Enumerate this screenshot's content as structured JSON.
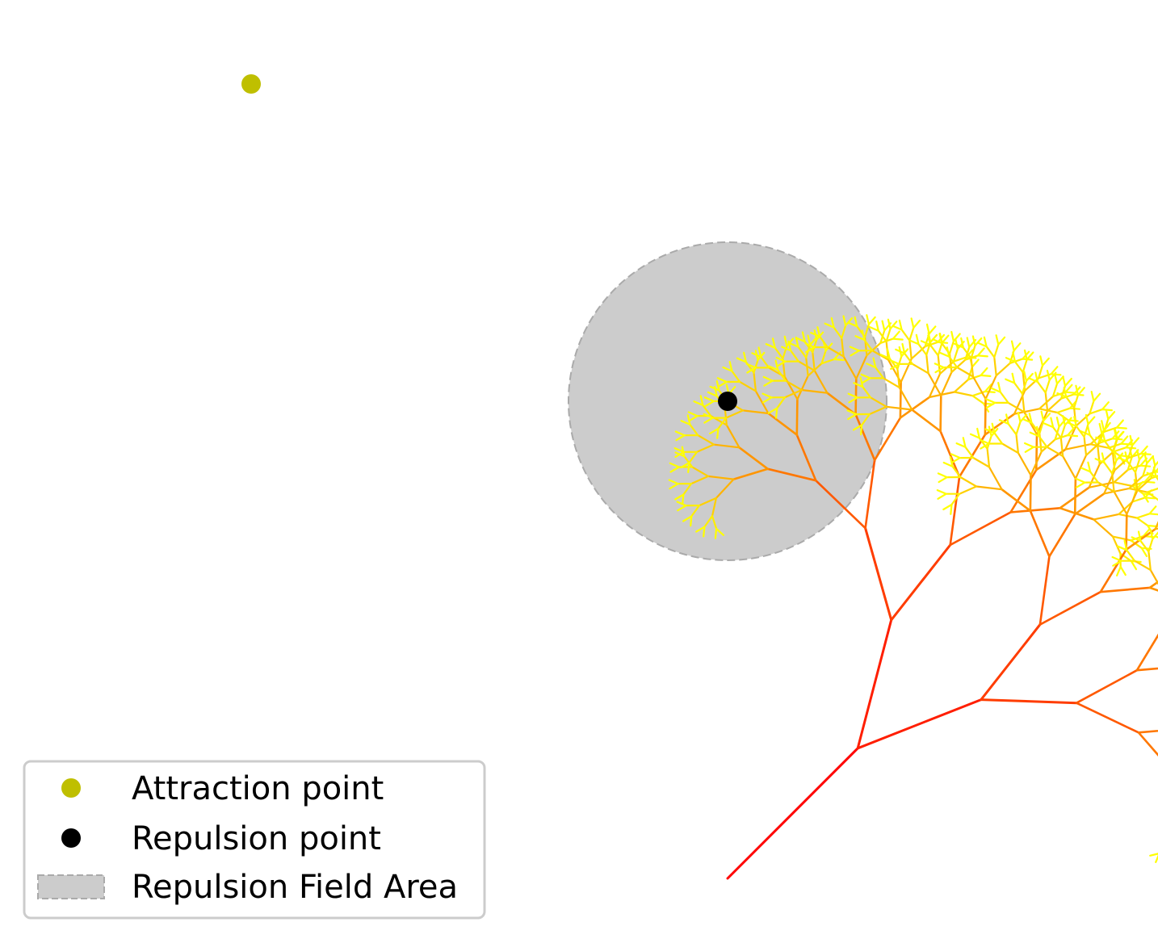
{
  "figure": {
    "colors": {
      "background": "#ffffff",
      "trunk": "#ff0000",
      "tips": "#ffff00",
      "attraction_point": "#bfbf00",
      "repulsion_point": "#000000",
      "repulsion_field_fill": "#cccccc",
      "repulsion_field_edge": "#aaaaaa"
    },
    "tree": {
      "depth": 9,
      "trunk_angle_deg": 45
    },
    "attraction_point": {
      "x": -3.0,
      "y": 5.0
    },
    "repulsion_point": {
      "x": 0.0,
      "y": 3.0
    },
    "repulsion_field_radius": 1.0
  },
  "legend": {
    "placement": "lower-left",
    "items": [
      {
        "label": "Attraction point",
        "marker": "circle",
        "color": "#bfbf00"
      },
      {
        "label": "Repulsion point",
        "marker": "circle",
        "color": "#000000"
      },
      {
        "label": "Repulsion Field Area",
        "marker": "dashed-rect",
        "color": "#cccccc"
      }
    ]
  }
}
